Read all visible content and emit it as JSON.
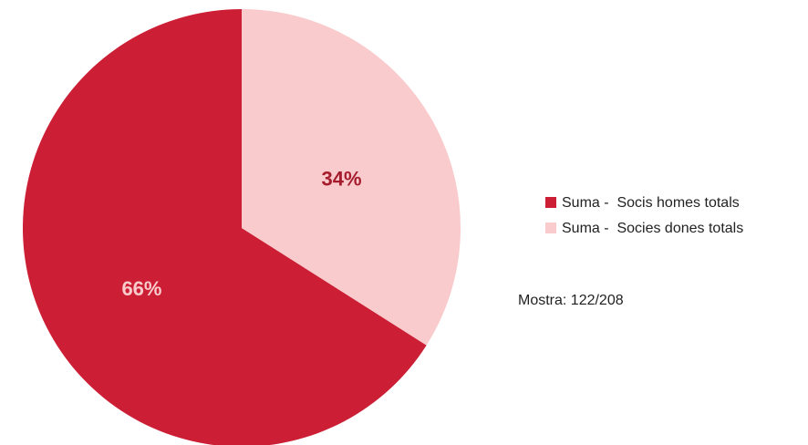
{
  "chart_data": {
    "type": "pie",
    "categories": [
      "Suma -  Socis homes totals",
      "Suma -  Socies dones totals"
    ],
    "values": [
      66,
      34
    ],
    "value_labels": [
      "66%",
      "34%"
    ],
    "colors": [
      "#cc1f36",
      "#f9cbcc"
    ],
    "label_colors": [
      "#f9cbcc",
      "#a51c2c"
    ],
    "annotation": "Mostra: 122/208"
  }
}
